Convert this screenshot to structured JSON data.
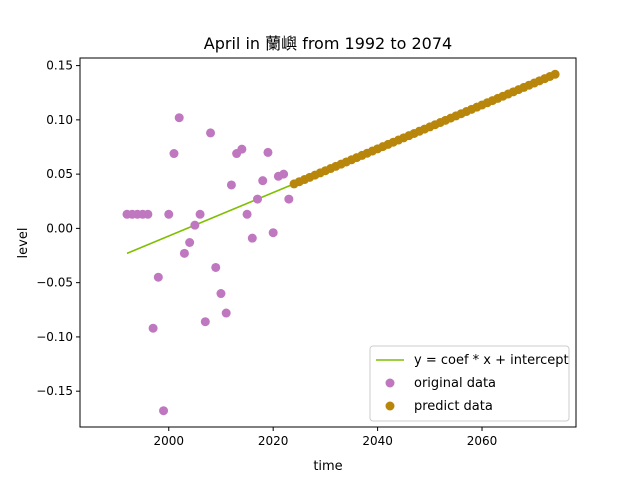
{
  "chart_data": {
    "type": "scatter",
    "title": "April in 蘭嶼 from 1992 to 2074",
    "xlabel": "time",
    "ylabel": "level",
    "xlim": [
      1983,
      2078
    ],
    "ylim": [
      -0.183,
      0.157
    ],
    "xticks": [
      2000,
      2020,
      2040,
      2060
    ],
    "yticks": [
      -0.15,
      -0.1,
      -0.05,
      0.0,
      0.05,
      0.1,
      0.15
    ],
    "ytick_labels": [
      "−0.15",
      "−0.10",
      "−0.05",
      "0.00",
      "0.05",
      "0.10",
      "0.15"
    ],
    "grid": false,
    "legend_position": "lower-right",
    "colors": {
      "fit": "#7fbf00",
      "original": "#bf77bf",
      "predict": "#b8860b"
    },
    "series": [
      {
        "name": "y = coef * x + intercept",
        "kind": "line",
        "x": [
          1992,
          2024
        ],
        "y": [
          -0.023,
          0.041
        ]
      },
      {
        "name": "original data",
        "kind": "scatter",
        "x": [
          1992,
          1993,
          1994,
          1995,
          1996,
          1997,
          1998,
          1999,
          2000,
          2001,
          2002,
          2003,
          2004,
          2005,
          2006,
          2007,
          2008,
          2009,
          2010,
          2011,
          2012,
          2013,
          2014,
          2015,
          2016,
          2017,
          2018,
          2019,
          2020,
          2021,
          2022,
          2023
        ],
        "y": [
          0.013,
          0.013,
          0.013,
          0.013,
          0.013,
          -0.092,
          -0.045,
          -0.168,
          0.013,
          0.069,
          0.102,
          -0.023,
          -0.013,
          0.003,
          0.013,
          -0.086,
          0.088,
          -0.036,
          -0.06,
          -0.078,
          0.04,
          0.069,
          0.073,
          0.013,
          -0.009,
          0.027,
          0.044,
          0.07,
          -0.004,
          0.048,
          0.05,
          0.027
        ]
      },
      {
        "name": "predict data",
        "kind": "scatter",
        "x_start": 2024,
        "x_end": 2074,
        "y_start": 0.041,
        "y_end": 0.142
      }
    ]
  }
}
